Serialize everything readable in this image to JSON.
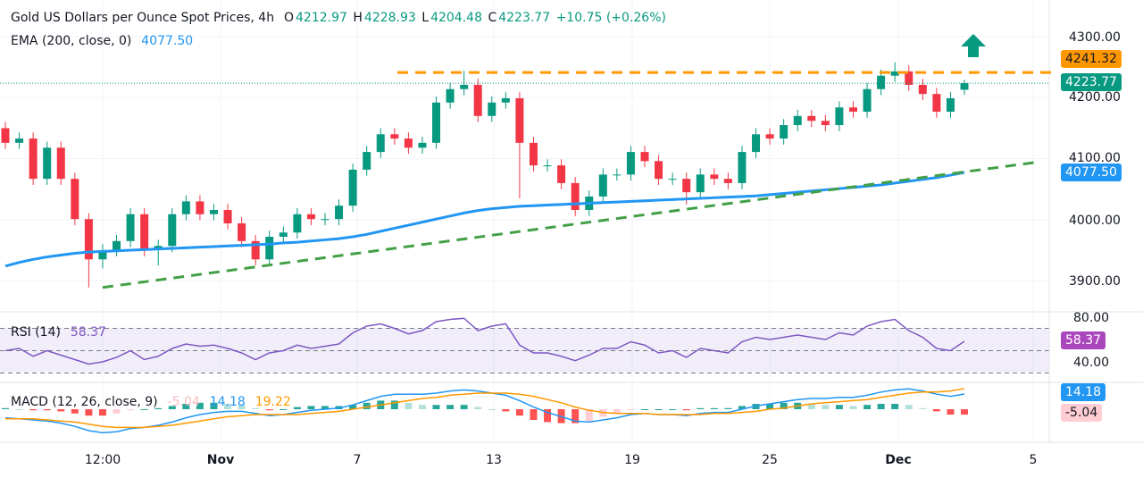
{
  "header": {
    "title": "Gold US Dollars per Ounce Spot Prices, 4h",
    "o_label": "O",
    "o_value": "4212.97",
    "h_label": "H",
    "h_value": "4228.93",
    "l_label": "L",
    "l_value": "4204.48",
    "c_label": "C",
    "c_value": "4223.77",
    "change": "+10.75 (+0.26%)",
    "ema_label": "EMA (200, close, 0)",
    "ema_value": "4077.50"
  },
  "rsi_legend": {
    "label": "RSI (14)",
    "value": "58.37"
  },
  "macd_legend": {
    "label": "MACD (12, 26, close, 9)",
    "hist": "-5.04",
    "macd": "14.18",
    "signal": "19.22"
  },
  "price_tags": {
    "resistance": "4241.32",
    "last": "4223.77",
    "ema": "4077.50",
    "rsi": "58.37",
    "macd": "14.18",
    "hist": "-5.04"
  },
  "colors": {
    "up": "#089981",
    "down": "#f23645",
    "ema": "#2196f3",
    "support": "#43a047",
    "resistance": "#ff9800",
    "rsi": "#7e57c2",
    "macd": "#2196f3",
    "signal": "#ff9800"
  },
  "icons": {
    "arrow": "arrow-up-icon"
  },
  "chart_data": {
    "type": "candlestick",
    "title": "Gold US Dollars per Ounce Spot Prices, 4h",
    "price_axis": {
      "ticks": [
        "4300.00",
        "4200.00",
        "4100.00",
        "4000.00",
        "3900.00"
      ],
      "range": [
        3870,
        4310
      ]
    },
    "rsi_axis": {
      "ticks": [
        "80.00",
        "40.00"
      ],
      "levels": [
        70,
        50,
        30
      ]
    },
    "time_axis": {
      "ticks": [
        "12:00",
        "Nov",
        "7",
        "13",
        "19",
        "25",
        "Dec",
        "5"
      ]
    },
    "open": [
      4150,
      4126,
      4133,
      4067,
      4118,
      4067,
      4001,
      3935,
      3950,
      3965,
      4009,
      3950,
      3957,
      4009,
      4030,
      4009,
      4016,
      3994,
      3965,
      3935,
      3972,
      3979,
      4009,
      4001,
      4001,
      4023,
      4082,
      4111,
      4140,
      4133,
      4118,
      4126,
      4192,
      4214,
      4221,
      4170,
      4192,
      4199,
      4126,
      4089,
      4089,
      4060,
      4016,
      4038,
      4074,
      4074,
      4111,
      4096,
      4067,
      4067,
      4045,
      4074,
      4067,
      4060,
      4111,
      4140,
      4133,
      4155,
      4170,
      4162,
      4155,
      4184,
      4177,
      4214,
      4236,
      4243,
      4221,
      4206,
      4177,
      4212.97
    ],
    "high": [
      4160,
      4143,
      4143,
      4128,
      4128,
      4077,
      4011,
      3960,
      3975,
      4019,
      4019,
      3967,
      4019,
      4040,
      4040,
      4026,
      4026,
      4004,
      3975,
      3982,
      3989,
      4019,
      4019,
      4011,
      4033,
      4092,
      4121,
      4150,
      4150,
      4143,
      4136,
      4202,
      4224,
      4244,
      4231,
      4202,
      4209,
      4209,
      4136,
      4099,
      4099,
      4070,
      4048,
      4084,
      4084,
      4121,
      4121,
      4106,
      4077,
      4077,
      4084,
      4084,
      4077,
      4121,
      4150,
      4150,
      4165,
      4180,
      4180,
      4172,
      4194,
      4194,
      4224,
      4246,
      4258,
      4253,
      4231,
      4216,
      4209,
      4228.93
    ],
    "low": [
      4116,
      4116,
      4057,
      4057,
      4057,
      3991,
      3889,
      3920,
      3940,
      3955,
      3940,
      3925,
      3947,
      3999,
      3999,
      3999,
      3984,
      3955,
      3925,
      3925,
      3962,
      3969,
      3991,
      3991,
      3991,
      4013,
      4072,
      4101,
      4123,
      4108,
      4108,
      4116,
      4182,
      4204,
      4160,
      4160,
      4182,
      4035,
      4079,
      4079,
      4050,
      4006,
      4006,
      4028,
      4064,
      4064,
      4086,
      4057,
      4057,
      4025,
      4035,
      4057,
      4050,
      4050,
      4101,
      4123,
      4123,
      4145,
      4152,
      4145,
      4145,
      4167,
      4167,
      4204,
      4226,
      4211,
      4196,
      4167,
      4167,
      4204.48
    ],
    "close": [
      4126,
      4133,
      4067,
      4118,
      4067,
      4001,
      3935,
      3950,
      3965,
      4009,
      3950,
      3957,
      4009,
      4030,
      4009,
      4016,
      3994,
      3965,
      3935,
      3972,
      3979,
      4009,
      4001,
      4001,
      4023,
      4082,
      4111,
      4140,
      4133,
      4118,
      4126,
      4192,
      4214,
      4221,
      4170,
      4192,
      4199,
      4126,
      4089,
      4089,
      4060,
      4016,
      4038,
      4074,
      4074,
      4111,
      4096,
      4067,
      4067,
      4045,
      4074,
      4067,
      4060,
      4111,
      4140,
      4133,
      4155,
      4170,
      4162,
      4155,
      4184,
      4177,
      4214,
      4236,
      4243,
      4221,
      4206,
      4177,
      4199,
      4223.77
    ],
    "ema200": [
      3924,
      3930,
      3935,
      3939,
      3942,
      3945,
      3947,
      3948,
      3949,
      3950,
      3951,
      3952,
      3953,
      3954,
      3955,
      3956,
      3957,
      3958,
      3959,
      3960,
      3962,
      3963,
      3965,
      3967,
      3969,
      3972,
      3976,
      3981,
      3986,
      3991,
      3996,
      4001,
      4006,
      4011,
      4015,
      4018,
      4020,
      4022,
      4023,
      4024,
      4025,
      4026,
      4027,
      4028,
      4029,
      4030,
      4031,
      4032,
      4033,
      4034,
      4035,
      4036,
      4037,
      4038,
      4039,
      4041,
      4043,
      4045,
      4047,
      4049,
      4051,
      4053,
      4055,
      4057,
      4060,
      4063,
      4066,
      4069,
      4073,
      4077.5
    ],
    "support_line": {
      "start_price": 3889,
      "end_price": 4094
    },
    "resistance_level": 4241.32,
    "rsi": [
      50,
      52,
      45,
      50,
      46,
      42,
      38,
      40,
      44,
      50,
      42,
      45,
      52,
      56,
      54,
      55,
      52,
      48,
      42,
      48,
      50,
      55,
      52,
      54,
      56,
      66,
      72,
      74,
      70,
      65,
      68,
      76,
      78,
      79,
      68,
      72,
      74,
      55,
      48,
      48,
      45,
      41,
      46,
      52,
      52,
      58,
      55,
      48,
      50,
      44,
      52,
      50,
      48,
      58,
      62,
      60,
      62,
      64,
      62,
      60,
      66,
      64,
      72,
      76,
      78,
      68,
      62,
      52,
      50,
      58.37
    ],
    "macd": [
      -8,
      -9,
      -10,
      -11,
      -13,
      -16,
      -20,
      -22,
      -21,
      -18,
      -17,
      -15,
      -12,
      -8,
      -5,
      -3,
      -2,
      -2,
      -4,
      -6,
      -5,
      -3,
      -1,
      0,
      1,
      4,
      8,
      12,
      14,
      14,
      14,
      15,
      17,
      18,
      17,
      15,
      13,
      8,
      2,
      -3,
      -7,
      -11,
      -12,
      -10,
      -8,
      -5,
      -4,
      -5,
      -5,
      -6,
      -4,
      -3,
      -3,
      0,
      3,
      5,
      7,
      9,
      10,
      10,
      11,
      11,
      13,
      16,
      18,
      19,
      17,
      14,
      12,
      14.18
    ],
    "signal": [
      -9,
      -9,
      -9,
      -10,
      -11,
      -12,
      -14,
      -16,
      -17,
      -17,
      -17,
      -16,
      -15,
      -13,
      -11,
      -9,
      -7,
      -6,
      -5,
      -5,
      -5,
      -5,
      -4,
      -3,
      -2,
      0,
      2,
      4,
      6,
      8,
      10,
      11,
      13,
      14,
      15,
      15,
      15,
      14,
      12,
      9,
      6,
      2,
      -1,
      -3,
      -4,
      -4,
      -4,
      -5,
      -5,
      -5,
      -5,
      -4,
      -4,
      -3,
      -2,
      0,
      1,
      3,
      5,
      6,
      7,
      8,
      9,
      11,
      13,
      15,
      16,
      16,
      17,
      19.22
    ]
  }
}
